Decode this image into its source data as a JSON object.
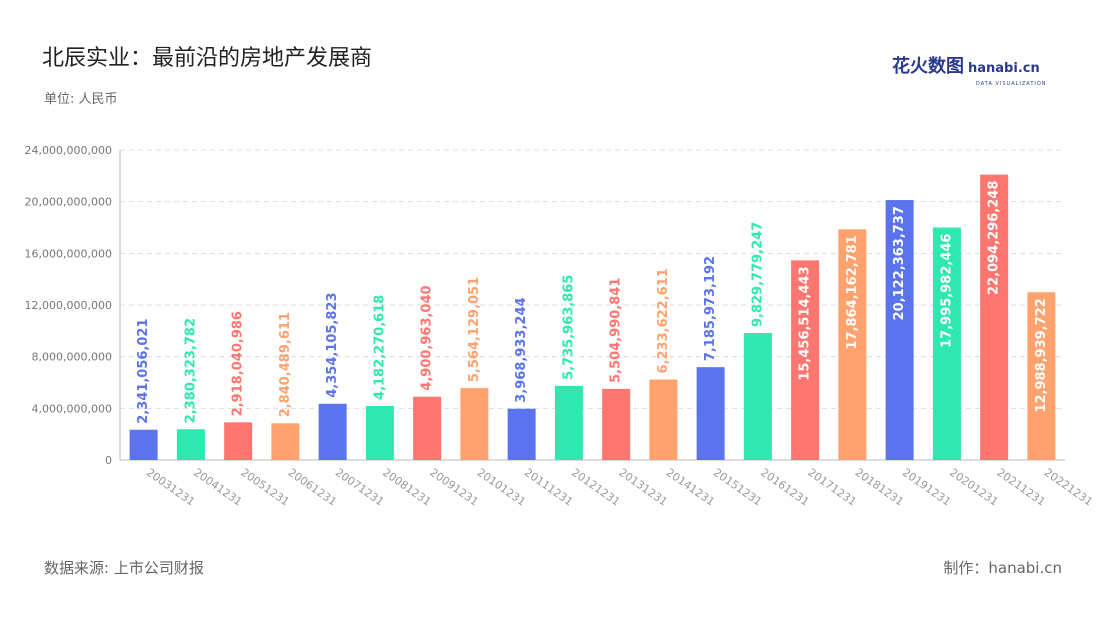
{
  "header": {
    "title": "北辰实业：最前沿的房地产发展商",
    "unit": "单位: 人民币",
    "logo_cn": "花火数图",
    "logo_en": "hanabi.cn",
    "logo_sub": "DATA VISUALIZATION"
  },
  "footer": {
    "source": "数据来源: 上市公司财报",
    "maker": "制作：hanabi.cn"
  },
  "colors": [
    "#5b73ec",
    "#2ee8b0",
    "#ff7670",
    "#ffa26e"
  ],
  "chart_data": {
    "type": "bar",
    "title": "北辰实业：最前沿的房地产发展商",
    "ylabel": "单位: 人民币",
    "ylim": [
      0,
      24000000000
    ],
    "yticks": [
      "0",
      "4,000,000,000",
      "8,000,000,000",
      "12,000,000,000",
      "16,000,000,000",
      "20,000,000,000",
      "24,000,000,000"
    ],
    "categories": [
      "20031231",
      "20041231",
      "20051231",
      "20061231",
      "20071231",
      "20081231",
      "20091231",
      "20101231",
      "20111231",
      "20121231",
      "20131231",
      "20141231",
      "20151231",
      "20161231",
      "20171231",
      "20181231",
      "20191231",
      "20201231",
      "20211231",
      "20221231"
    ],
    "values": [
      2341056021,
      2380323782,
      2918040986,
      2840489611,
      4354105823,
      4182270618,
      4900963040,
      5564129051,
      3968933244,
      5735963865,
      5504990841,
      6233622611,
      7185973192,
      9829779247,
      15456514443,
      17864162781,
      20122363737,
      17995982446,
      22094296248,
      12988939722
    ],
    "labels": [
      "2,341,056,021",
      "2,380,323,782",
      "2,918,040,986",
      "2,840,489,611",
      "4,354,105,823",
      "4,182,270,618",
      "4,900,963,040",
      "5,564,129,051",
      "3,968,933,244",
      "5,735,963,865",
      "5,504,990,841",
      "6,233,622,611",
      "7,185,973,192",
      "9,829,779,247",
      "15,456,514,443",
      "17,864,162,781",
      "20,122,363,737",
      "17,995,982,446",
      "22,094,296,248",
      "12,988,939,722"
    ],
    "grid": true
  }
}
